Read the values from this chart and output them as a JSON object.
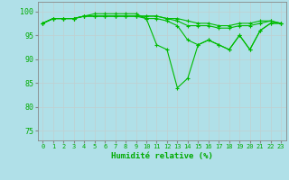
{
  "series": [
    [
      97.5,
      98.5,
      98.5,
      98.5,
      99.0,
      99.5,
      99.5,
      99.5,
      99.5,
      99.5,
      98.5,
      93.0,
      92.0,
      84.0,
      86.0,
      93.0,
      94.0,
      93.0,
      92.0,
      95.0,
      92.0,
      96.0,
      97.5,
      97.5
    ],
    [
      97.5,
      98.5,
      98.5,
      98.5,
      99.0,
      99.0,
      99.0,
      99.0,
      99.0,
      99.0,
      98.5,
      98.5,
      98.0,
      97.0,
      94.0,
      93.0,
      94.0,
      93.0,
      92.0,
      95.0,
      92.0,
      96.0,
      97.5,
      97.5
    ],
    [
      97.5,
      98.5,
      98.5,
      98.5,
      99.0,
      99.0,
      99.0,
      99.0,
      99.0,
      99.0,
      99.0,
      99.0,
      98.5,
      98.0,
      97.0,
      97.0,
      97.0,
      96.5,
      96.5,
      97.0,
      97.0,
      97.5,
      98.0,
      97.5
    ],
    [
      97.5,
      98.5,
      98.5,
      98.5,
      99.0,
      99.0,
      99.0,
      99.0,
      99.0,
      99.0,
      99.0,
      99.0,
      98.5,
      98.5,
      98.0,
      97.5,
      97.5,
      97.0,
      97.0,
      97.5,
      97.5,
      98.0,
      98.0,
      97.5
    ]
  ],
  "x": [
    0,
    1,
    2,
    3,
    4,
    5,
    6,
    7,
    8,
    9,
    10,
    11,
    12,
    13,
    14,
    15,
    16,
    17,
    18,
    19,
    20,
    21,
    22,
    23
  ],
  "line_color": "#00bb00",
  "bg_color": "#b0e0e8",
  "grid_color": "#c0d0d0",
  "axis_color": "#888888",
  "xlabel": "Humidité relative (%)",
  "xlabel_color": "#00aa00",
  "tick_color": "#00aa00",
  "ylim": [
    73,
    102
  ],
  "yticks": [
    75,
    80,
    85,
    90,
    95,
    100
  ],
  "xtick_labels": [
    "0",
    "1",
    "2",
    "3",
    "4",
    "5",
    "6",
    "7",
    "8",
    "9",
    "10",
    "11",
    "12",
    "13",
    "14",
    "15",
    "16",
    "17",
    "18",
    "19",
    "20",
    "21",
    "22",
    "23"
  ]
}
